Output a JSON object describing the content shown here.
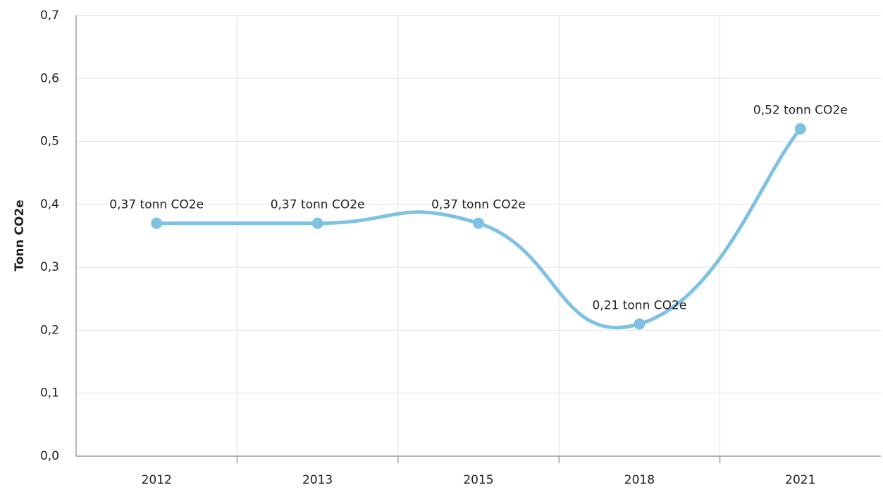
{
  "chart_data": {
    "type": "line",
    "y_label": "Tonn CO2e",
    "categories": [
      "2012",
      "2013",
      "2015",
      "2018",
      "2021"
    ],
    "values": [
      0.37,
      0.37,
      0.37,
      0.21,
      0.52
    ],
    "value_labels": [
      "0,37 tonn CO2e",
      "0,37 tonn CO2e",
      "0,37 tonn CO2e",
      "0,21 tonn CO2e",
      "0,52 tonn CO2e"
    ],
    "color": "#7fc1e3",
    "ylim": [
      0,
      0.7
    ],
    "yticks": [
      {
        "value": 0,
        "label": "0,0"
      },
      {
        "value": 0.1,
        "label": "0,1"
      },
      {
        "value": 0.2,
        "label": "0,2"
      },
      {
        "value": 0.3,
        "label": "0,3"
      },
      {
        "value": 0.4,
        "label": "0,4"
      },
      {
        "value": 0.5,
        "label": "0,5"
      },
      {
        "value": 0.6,
        "label": "0,6"
      },
      {
        "value": 0.7,
        "label": "0,7"
      }
    ],
    "grid": true
  }
}
